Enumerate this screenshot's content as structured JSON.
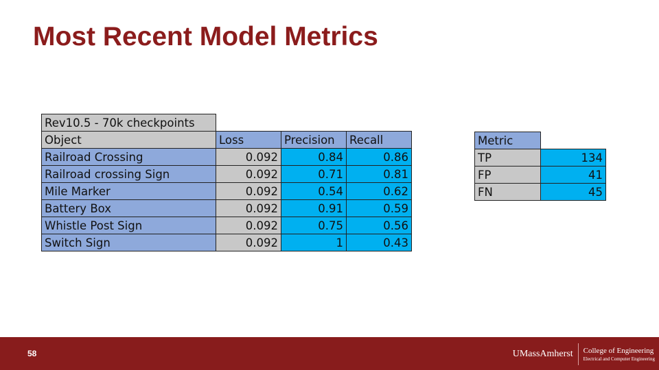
{
  "title": "Most Recent Model Metrics",
  "table": {
    "caption": "Rev10.5 - 70k checkpoints",
    "headers": [
      "Object",
      "Loss",
      "Precision",
      "Recall"
    ],
    "rows": [
      [
        "Railroad Crossing",
        "0.092",
        "0.84",
        "0.86"
      ],
      [
        "Railroad crossing Sign",
        "0.092",
        "0.71",
        "0.81"
      ],
      [
        "Mile Marker",
        "0.092",
        "0.54",
        "0.62"
      ],
      [
        "Battery Box",
        "0.092",
        "0.91",
        "0.59"
      ],
      [
        "Whistle Post Sign",
        "0.092",
        "0.75",
        "0.56"
      ],
      [
        "Switch Sign",
        "0.092",
        "1",
        "0.43"
      ]
    ]
  },
  "summary": {
    "header": "Metric",
    "rows": [
      [
        "TP",
        "134"
      ],
      [
        "FP",
        "41"
      ],
      [
        "FN",
        "45"
      ]
    ]
  },
  "footer": {
    "page_number": "58",
    "logo_main": "UMassAmherst",
    "logo_college": "College of Engineering",
    "logo_dept": "Electrical and Computer Engineering"
  },
  "colors": {
    "title": "#8b1c1c",
    "footer": "#881c1c",
    "label_cell": "#8ea9db",
    "loss_cell": "#c8c8c8",
    "value_cell": "#00b0f0"
  }
}
